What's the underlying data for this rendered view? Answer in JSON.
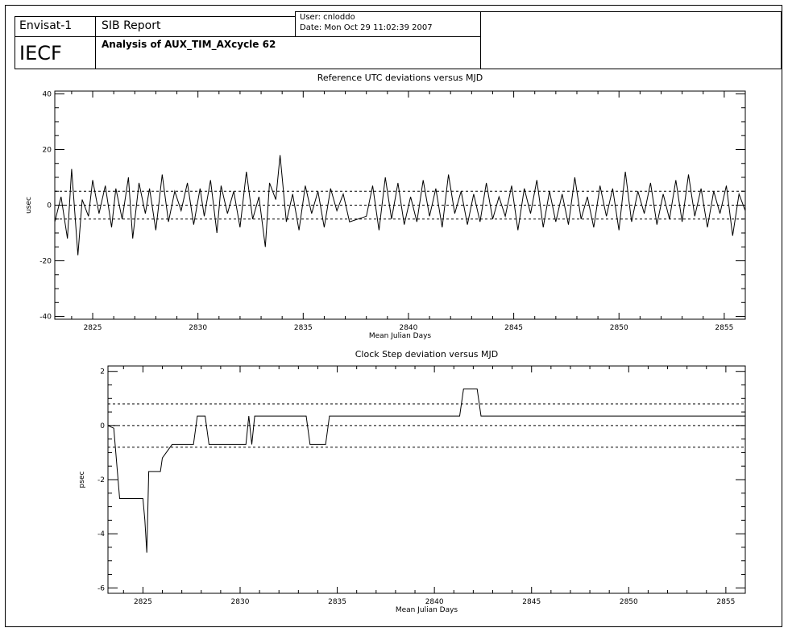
{
  "header": {
    "mission": "Envisat-1",
    "report_title": "SIB Report",
    "user_line": "User: cnloddo",
    "date_line": "Date: Mon Oct 29 11:02:39 2007",
    "analysis_title": "Analysis of AUX_TIM_AXcycle 62",
    "org": "IECF"
  },
  "chart_data": [
    {
      "type": "line",
      "title": "Reference UTC deviations versus MJD",
      "xlabel": "Mean Julian Days",
      "ylabel": "usec",
      "xlim": [
        2823.2,
        2856.0
      ],
      "ylim": [
        -41,
        41
      ],
      "xticks": [
        2825,
        2830,
        2835,
        2840,
        2845,
        2850,
        2855
      ],
      "yticks": [
        -40,
        -20,
        0,
        20,
        40
      ],
      "threshold_lines": [
        5,
        0,
        -5
      ],
      "series": [
        {
          "x": [
            2823.2,
            2823.5,
            2823.8,
            2824.0,
            2824.3,
            2824.5,
            2824.8,
            2825.0,
            2825.3,
            2825.6,
            2825.9,
            2826.1,
            2826.4,
            2826.7,
            2826.9,
            2827.2,
            2827.5,
            2827.7,
            2828.0,
            2828.3,
            2828.6,
            2828.9,
            2829.2,
            2829.5,
            2829.8,
            2830.1,
            2830.3,
            2830.6,
            2830.9,
            2831.1,
            2831.4,
            2831.7,
            2832.0,
            2832.3,
            2832.6,
            2832.9,
            2833.2,
            2833.4,
            2833.7,
            2833.9,
            2834.2,
            2834.5,
            2834.8,
            2835.1,
            2835.4,
            2835.7,
            2836.0,
            2836.3,
            2836.6,
            2836.9,
            2837.2,
            2838.0,
            2838.3,
            2838.6,
            2838.9,
            2839.2,
            2839.5,
            2839.8,
            2840.1,
            2840.4,
            2840.7,
            2841.0,
            2841.3,
            2841.6,
            2841.9,
            2842.2,
            2842.5,
            2842.8,
            2843.1,
            2843.4,
            2843.7,
            2844.0,
            2844.3,
            2844.6,
            2844.9,
            2845.2,
            2845.5,
            2845.8,
            2846.1,
            2846.4,
            2846.7,
            2847.0,
            2847.3,
            2847.6,
            2847.9,
            2848.2,
            2848.5,
            2848.8,
            2849.1,
            2849.4,
            2849.7,
            2850.0,
            2850.3,
            2850.6,
            2850.9,
            2851.2,
            2851.5,
            2851.8,
            2852.1,
            2852.4,
            2852.7,
            2853.0,
            2853.3,
            2853.6,
            2853.9,
            2854.2,
            2854.5,
            2854.8,
            2855.1,
            2855.4,
            2855.7,
            2856.0
          ],
          "values": [
            -6,
            3,
            -12,
            13,
            -18,
            2,
            -4,
            9,
            -3,
            7,
            -8,
            6,
            -5,
            10,
            -12,
            8,
            -3,
            6,
            -9,
            11,
            -6,
            5,
            -2,
            8,
            -7,
            6,
            -4,
            9,
            -10,
            7,
            -3,
            5,
            -8,
            12,
            -5,
            3,
            -15,
            8,
            2,
            18,
            -6,
            4,
            -9,
            7,
            -3,
            5,
            -8,
            6,
            -2,
            4,
            -6,
            -4,
            7,
            -9,
            10,
            -5,
            8,
            -7,
            3,
            -6,
            9,
            -4,
            6,
            -8,
            11,
            -3,
            5,
            -7,
            4,
            -6,
            8,
            -5,
            3,
            -4,
            7,
            -9,
            6,
            -3,
            9,
            -8,
            5,
            -6,
            4,
            -7,
            10,
            -5,
            3,
            -8,
            7,
            -4,
            6,
            -9,
            12,
            -6,
            5,
            -3,
            8,
            -7,
            4,
            -5,
            9,
            -6,
            11,
            -4,
            6,
            -8,
            5,
            -3,
            7,
            -11,
            4,
            -2
          ]
        }
      ]
    },
    {
      "type": "line",
      "title": "Clock Step deviation versus MJD",
      "xlabel": "Mean Julian Days",
      "ylabel": "psec",
      "xlim": [
        2823.2,
        2856.0
      ],
      "ylim": [
        -6.2,
        2.2
      ],
      "xticks": [
        2825,
        2830,
        2835,
        2840,
        2845,
        2850,
        2855
      ],
      "yticks": [
        -6,
        -4,
        -2,
        0,
        2
      ],
      "threshold_lines": [
        0.8,
        0,
        -0.8
      ],
      "series": [
        {
          "x": [
            2823.2,
            2823.5,
            2823.8,
            2825.0,
            2825.1,
            2825.2,
            2825.3,
            2825.9,
            2826.0,
            2826.5,
            2827.6,
            2827.8,
            2828.2,
            2828.4,
            2829.5,
            2830.3,
            2830.45,
            2830.6,
            2830.75,
            2830.9,
            2833.4,
            2833.6,
            2834.4,
            2834.6,
            2841.3,
            2841.5,
            2842.2,
            2842.4,
            2856.0
          ],
          "values": [
            0,
            -0.1,
            -2.7,
            -2.7,
            -3.5,
            -4.7,
            -1.7,
            -1.7,
            -1.2,
            -0.7,
            -0.7,
            0.35,
            0.35,
            -0.7,
            -0.7,
            -0.7,
            0.35,
            -0.7,
            0.35,
            0.35,
            0.35,
            -0.7,
            -0.7,
            0.35,
            0.35,
            1.35,
            1.35,
            0.35,
            0.35
          ]
        }
      ]
    }
  ]
}
